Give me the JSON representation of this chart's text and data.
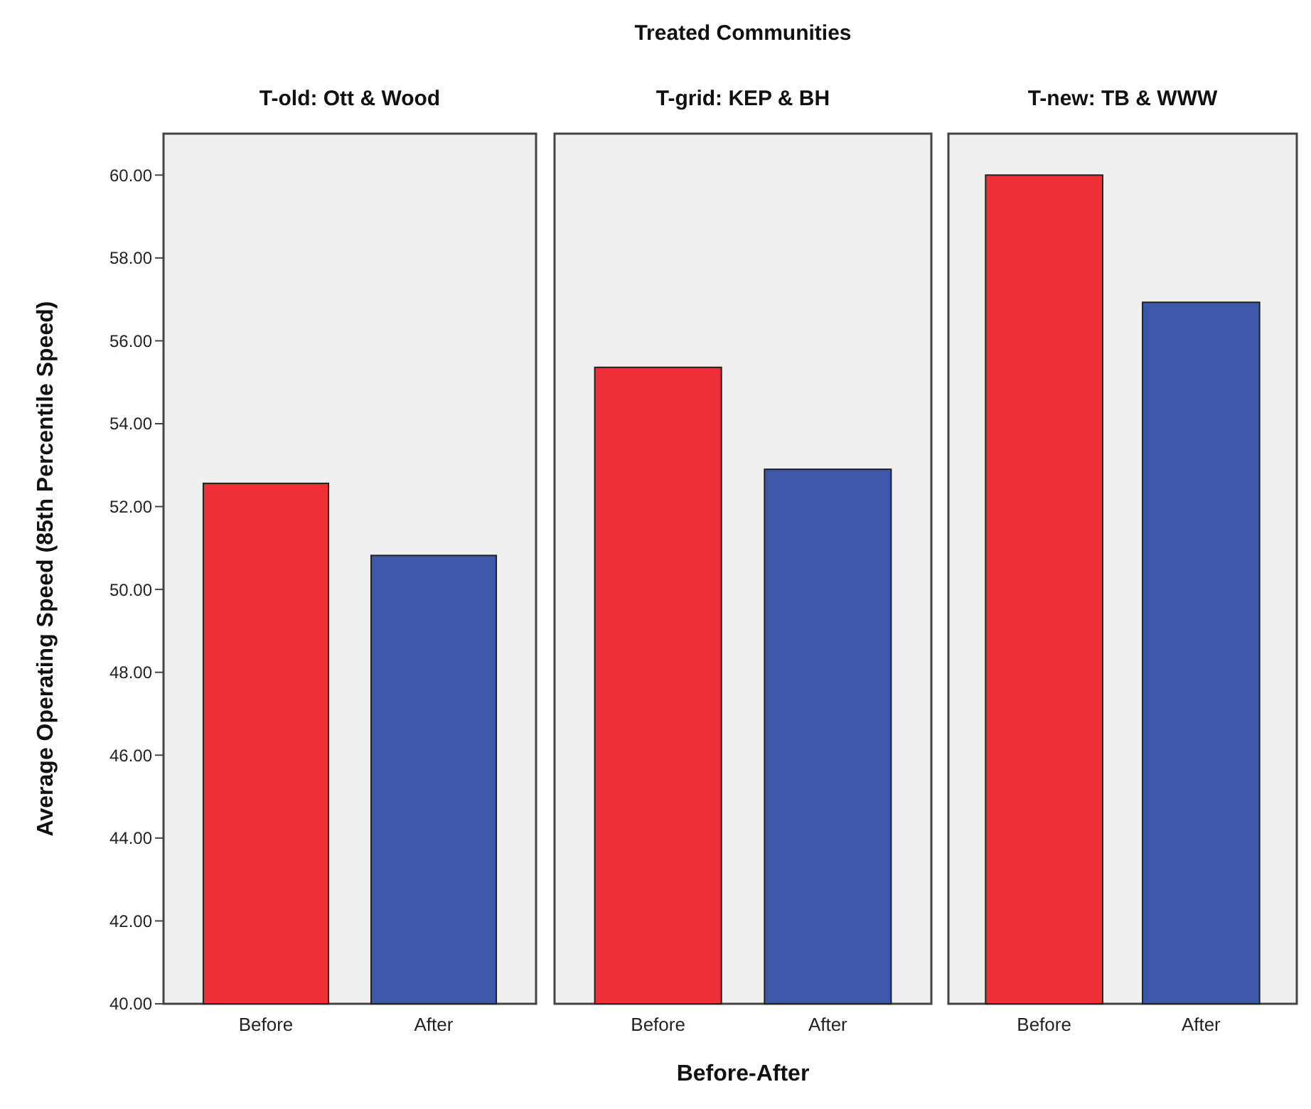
{
  "chart_data": [
    {
      "type": "bar",
      "title": "T-old: Ott & Wood",
      "ylabel": "Average Operating Speed (85th Percentile Speed)",
      "categories": [
        "Before",
        "After"
      ],
      "values": [
        52.56,
        50.82
      ],
      "colors": [
        "#ee3039",
        "#3d58a9"
      ],
      "ylim": [
        40,
        61
      ],
      "yticks": [
        {
          "value": 40,
          "label": "40.00"
        },
        {
          "value": 42,
          "label": "42.00"
        },
        {
          "value": 44,
          "label": "44.00"
        },
        {
          "value": 46,
          "label": "46.00"
        },
        {
          "value": 48,
          "label": "48.00"
        },
        {
          "value": 50,
          "label": "50.00"
        },
        {
          "value": 52,
          "label": "52.00"
        },
        {
          "value": 54,
          "label": "54.00"
        },
        {
          "value": 56,
          "label": "56.00"
        },
        {
          "value": 58,
          "label": "58.00"
        },
        {
          "value": 60,
          "label": "60.00"
        }
      ]
    },
    {
      "type": "bar",
      "title": "T-grid: KEP & BH",
      "xlabel": "Before-After",
      "annotations": [
        "Treated Communities"
      ],
      "categories": [
        "Before",
        "After"
      ],
      "values": [
        55.36,
        52.9
      ],
      "colors": [
        "#ee3039",
        "#3d58a9"
      ],
      "ylim": [
        40,
        61
      ],
      "tick_labels": "x"
    },
    {
      "type": "bar",
      "title": "T-new: TB & WWW",
      "categories": [
        "Before",
        "After"
      ],
      "values": [
        60.0,
        56.93
      ],
      "colors": [
        "#ee3039",
        "#3d58a9"
      ],
      "ylim": [
        40,
        61
      ],
      "tick_labels": "x"
    }
  ]
}
